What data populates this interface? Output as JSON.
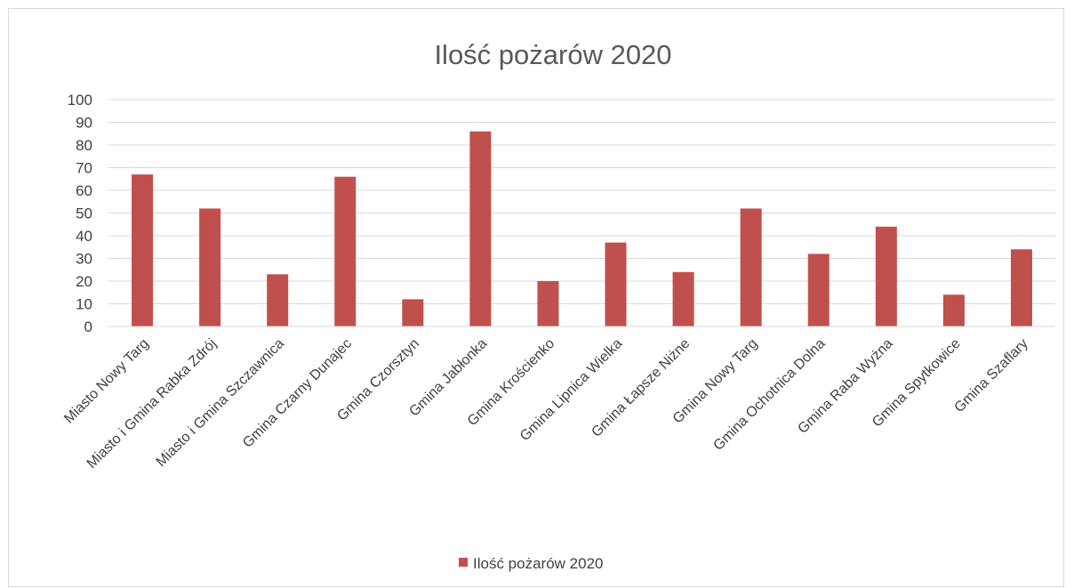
{
  "chart_data": {
    "type": "bar",
    "title": "Ilość pożarów 2020",
    "categories": [
      "Miasto Nowy Targ",
      "Miasto i Gmina Rabka Zdrój",
      "Miasto i Gmina Szczawnica",
      "Gmina Czarny Dunajec",
      "Gmina Czorsztyn",
      "Gmina Jabłonka",
      "Gmina Krościenko",
      "Gmina Lipnica Wielka",
      "Gmina Łapsze Niżne",
      "Gmina Nowy Targ",
      "Gmina Ochotnica Dolna",
      "Gmina Raba Wyżna",
      "Gmina Spytkowice",
      "Gmina Szaflary"
    ],
    "series": [
      {
        "name": "Ilość pożarów 2020",
        "color": "#c0504d",
        "values": [
          67,
          52,
          23,
          66,
          12,
          86,
          20,
          37,
          24,
          52,
          32,
          44,
          14,
          34
        ]
      }
    ],
    "ylim": [
      0,
      100
    ],
    "yticks": [
      0,
      10,
      20,
      30,
      40,
      50,
      60,
      70,
      80,
      90,
      100
    ],
    "grid": true,
    "legend_position": "bottom"
  }
}
